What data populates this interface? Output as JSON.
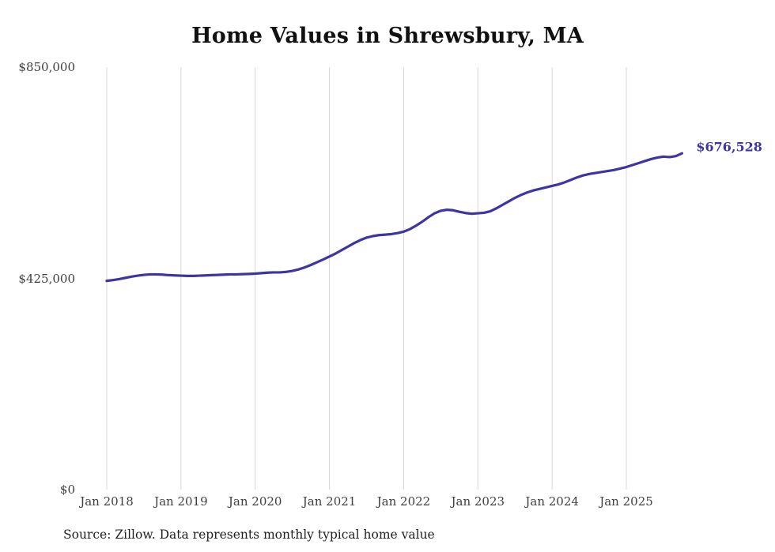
{
  "chart": {
    "title": "Home Values in Shrewsbury, MA",
    "end_label": "$676,528",
    "source": "Source: Zillow. Data represents monthly typical home value",
    "colors": {
      "line": "#3d35a1",
      "grid": "#d8d8d8",
      "title": "#111111",
      "axis_text": "#3d3d3d",
      "end_label": "#3d35a1"
    }
  },
  "chart_data": {
    "type": "line",
    "title": "Home Values in Shrewsbury, MA",
    "xlabel": "",
    "ylabel": "",
    "ylim": [
      0,
      850000
    ],
    "grid": "vertical-yearly",
    "legend": "none",
    "x_ticks": [
      "Jan 2018",
      "Jan 2019",
      "Jan 2020",
      "Jan 2021",
      "Jan 2022",
      "Jan 2023",
      "Jan 2024",
      "Jan 2025"
    ],
    "y_ticks": [
      {
        "label": "$850,000",
        "value": 850000
      },
      {
        "label": "$425,000",
        "value": 425000
      },
      {
        "label": "$0",
        "value": 0
      }
    ],
    "end_value": 676528,
    "end_value_label": "$676,528",
    "series": [
      {
        "name": "Monthly typical home value",
        "start": "2018-01",
        "interval": "monthly",
        "values": [
          420000,
          421500,
          423500,
          426000,
          428500,
          430500,
          432000,
          433000,
          433000,
          432500,
          431500,
          431000,
          430500,
          430000,
          430000,
          430500,
          431000,
          431500,
          432000,
          432500,
          433000,
          433000,
          433500,
          434000,
          434500,
          435500,
          436500,
          437000,
          437000,
          438000,
          440000,
          443000,
          447000,
          452000,
          457500,
          463000,
          469000,
          475000,
          482000,
          489000,
          496000,
          502000,
          507000,
          510000,
          512000,
          513000,
          514000,
          516000,
          519000,
          524000,
          531000,
          539000,
          548000,
          556000,
          561000,
          563000,
          562000,
          559000,
          556500,
          555000,
          556000,
          557000,
          560000,
          566000,
          573000,
          580000,
          587000,
          593000,
          598000,
          602000,
          605000,
          608000,
          611000,
          614000,
          618000,
          623000,
          628000,
          632000,
          635000,
          637000,
          639000,
          641000,
          643000,
          646000,
          649000,
          653000,
          657000,
          661000,
          665000,
          668000,
          670000,
          669000,
          671000,
          676528
        ]
      }
    ]
  }
}
